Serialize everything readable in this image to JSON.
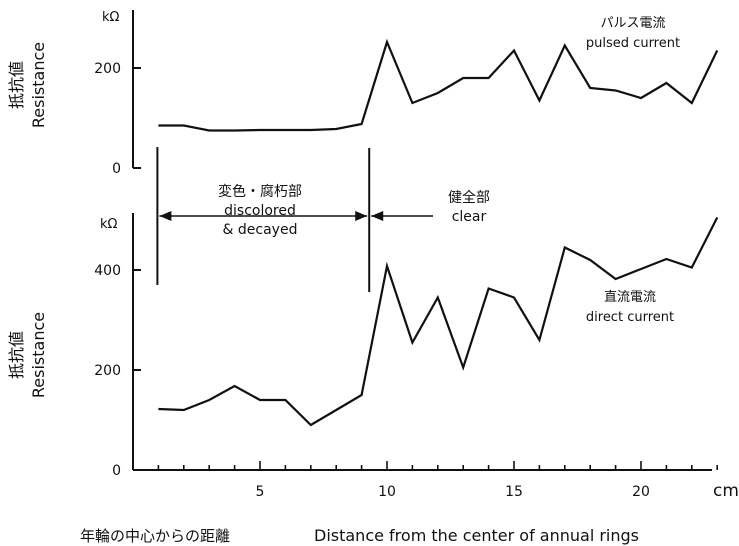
{
  "chart_data": [
    {
      "type": "line",
      "xlabel": "",
      "ylabel_jp": "抵抗値",
      "ylabel": "Resistance",
      "y_unit": "kΩ",
      "ylim": [
        0,
        250
      ],
      "y_ticks": [
        0,
        200
      ],
      "series": [
        {
          "name_jp": "パルス電流",
          "name": "pulsed current",
          "x": [
            1,
            2,
            3,
            4,
            5,
            6,
            7,
            8,
            9,
            10,
            11,
            12,
            13,
            14,
            15,
            16,
            17,
            18,
            19,
            20,
            21,
            22,
            23
          ],
          "values": [
            85,
            85,
            75,
            75,
            76,
            76,
            76,
            78,
            88,
            252,
            130,
            150,
            180,
            180,
            235,
            135,
            245,
            160,
            155,
            140,
            170,
            130,
            235
          ]
        }
      ]
    },
    {
      "type": "line",
      "xlabel_jp": "年輪の中心からの距離",
      "xlabel": "Distance from the center of annual rings",
      "x_unit": "cm",
      "xlim": [
        0,
        24
      ],
      "x_ticks": [
        5,
        10,
        15,
        20
      ],
      "ylabel_jp": "抵抗値",
      "ylabel": "Resistance",
      "y_unit": "kΩ",
      "ylim": [
        0,
        500
      ],
      "y_ticks": [
        0,
        200,
        400
      ],
      "series": [
        {
          "name_jp": "直流電流",
          "name": "direct current",
          "x": [
            1,
            2,
            3,
            4,
            5,
            6,
            7,
            8,
            9,
            10,
            11,
            12,
            13,
            14,
            15,
            16,
            17,
            18,
            19,
            20,
            21,
            22,
            23
          ],
          "values": [
            122,
            120,
            140,
            168,
            140,
            140,
            90,
            120,
            150,
            408,
            255,
            345,
            205,
            363,
            345,
            260,
            445,
            420,
            382,
            402,
            422,
            405,
            505
          ]
        }
      ]
    }
  ],
  "regions": {
    "discolored_jp": "変色・腐朽部",
    "discolored_line1": "discolored",
    "discolored_line2": "& decayed",
    "clear_jp": "健全部",
    "clear": "clear",
    "boundary_start_x": 1,
    "boundary_x": 9.3
  }
}
